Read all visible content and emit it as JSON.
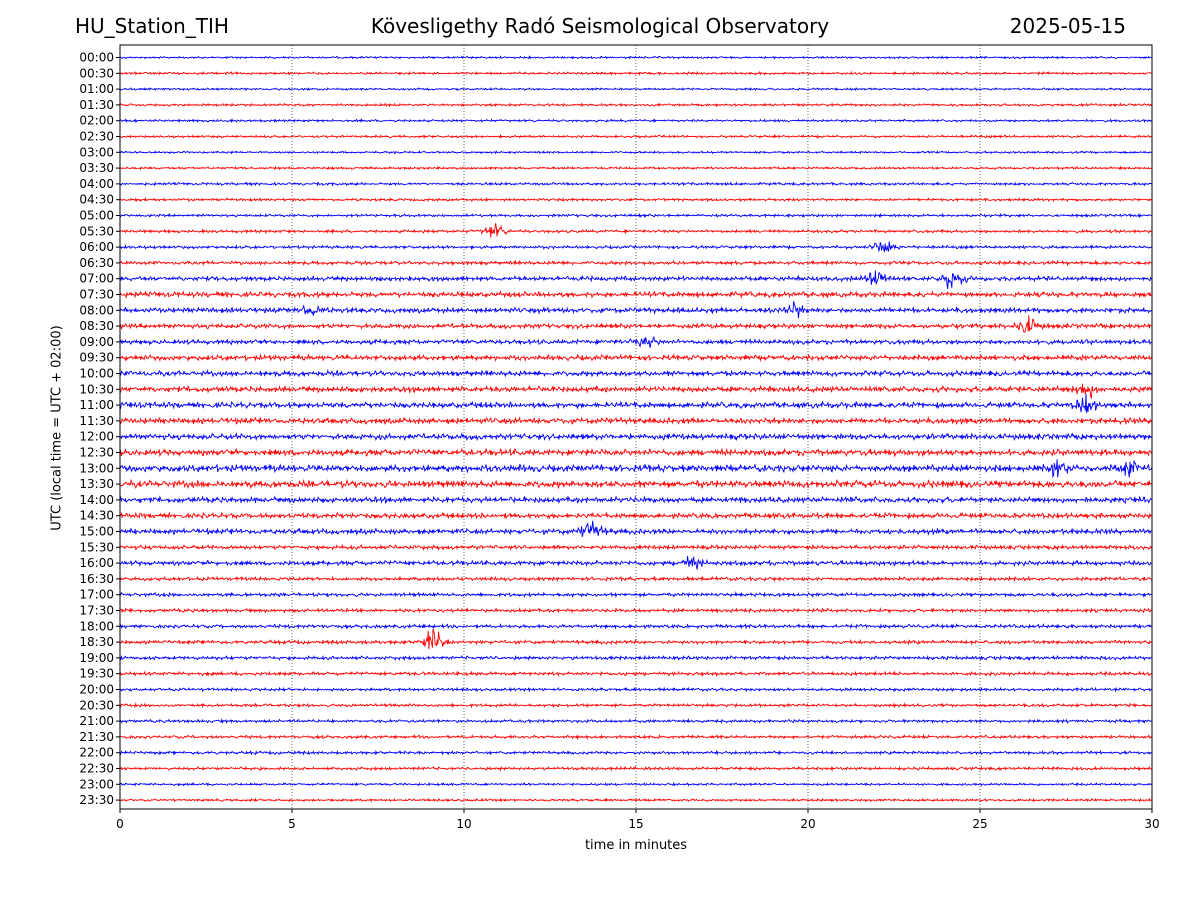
{
  "header": {
    "station": "HU_Station_TIH",
    "title": "Kövesligethy Radó Seismological Observatory",
    "date": "2025-05-15"
  },
  "chart_data": {
    "type": "line",
    "subtype": "helicorder",
    "xlabel": "time in minutes",
    "ylabel": "UTC (local time = UTC + 02:00)",
    "xlim": [
      0,
      30
    ],
    "x_ticks": [
      0,
      5,
      10,
      15,
      20,
      25,
      30
    ],
    "grid": "vertical dotted at x ticks",
    "line_colors": [
      "#0000ff",
      "#ff0000"
    ],
    "rows": [
      "00:00",
      "00:30",
      "01:00",
      "01:30",
      "02:00",
      "02:30",
      "03:00",
      "03:30",
      "04:00",
      "04:30",
      "05:00",
      "05:30",
      "06:00",
      "06:30",
      "07:00",
      "07:30",
      "08:00",
      "08:30",
      "09:00",
      "09:30",
      "10:00",
      "10:30",
      "11:00",
      "11:30",
      "12:00",
      "12:30",
      "13:00",
      "13:30",
      "14:00",
      "14:30",
      "15:00",
      "15:30",
      "16:00",
      "16:30",
      "17:00",
      "17:30",
      "18:00",
      "18:30",
      "19:00",
      "19:30",
      "20:00",
      "20:30",
      "21:00",
      "21:30",
      "22:00",
      "22:30",
      "23:00",
      "23:30"
    ],
    "noise_level": [
      0.35,
      0.4,
      0.35,
      0.4,
      0.4,
      0.4,
      0.35,
      0.4,
      0.45,
      0.45,
      0.45,
      0.5,
      0.5,
      0.6,
      0.8,
      0.9,
      0.9,
      0.8,
      0.8,
      0.9,
      0.9,
      1.0,
      1.0,
      1.0,
      1.0,
      1.1,
      1.2,
      1.2,
      1.0,
      0.9,
      0.9,
      0.7,
      0.8,
      0.6,
      0.6,
      0.6,
      0.6,
      0.6,
      0.6,
      0.6,
      0.5,
      0.5,
      0.5,
      0.5,
      0.5,
      0.5,
      0.4,
      0.4
    ],
    "events": [
      {
        "row": "05:30",
        "minute": 10.9,
        "amplitude": 1.8
      },
      {
        "row": "06:00",
        "minute": 22.2,
        "amplitude": 2.2
      },
      {
        "row": "07:00",
        "minute": 22.0,
        "amplitude": 2.4
      },
      {
        "row": "07:00",
        "minute": 24.2,
        "amplitude": 2.6
      },
      {
        "row": "08:00",
        "minute": 5.5,
        "amplitude": 1.6
      },
      {
        "row": "08:00",
        "minute": 19.6,
        "amplitude": 1.8
      },
      {
        "row": "08:30",
        "minute": 26.4,
        "amplitude": 2.6
      },
      {
        "row": "09:00",
        "minute": 15.3,
        "amplitude": 1.5
      },
      {
        "row": "10:30",
        "minute": 28.1,
        "amplitude": 2.0
      },
      {
        "row": "11:00",
        "minute": 28.1,
        "amplitude": 2.6
      },
      {
        "row": "13:00",
        "minute": 27.3,
        "amplitude": 2.0
      },
      {
        "row": "13:00",
        "minute": 29.3,
        "amplitude": 1.8
      },
      {
        "row": "15:00",
        "minute": 13.7,
        "amplitude": 2.6
      },
      {
        "row": "16:00",
        "minute": 16.6,
        "amplitude": 1.6
      },
      {
        "row": "18:30",
        "minute": 9.1,
        "amplitude": 3.2
      }
    ]
  }
}
